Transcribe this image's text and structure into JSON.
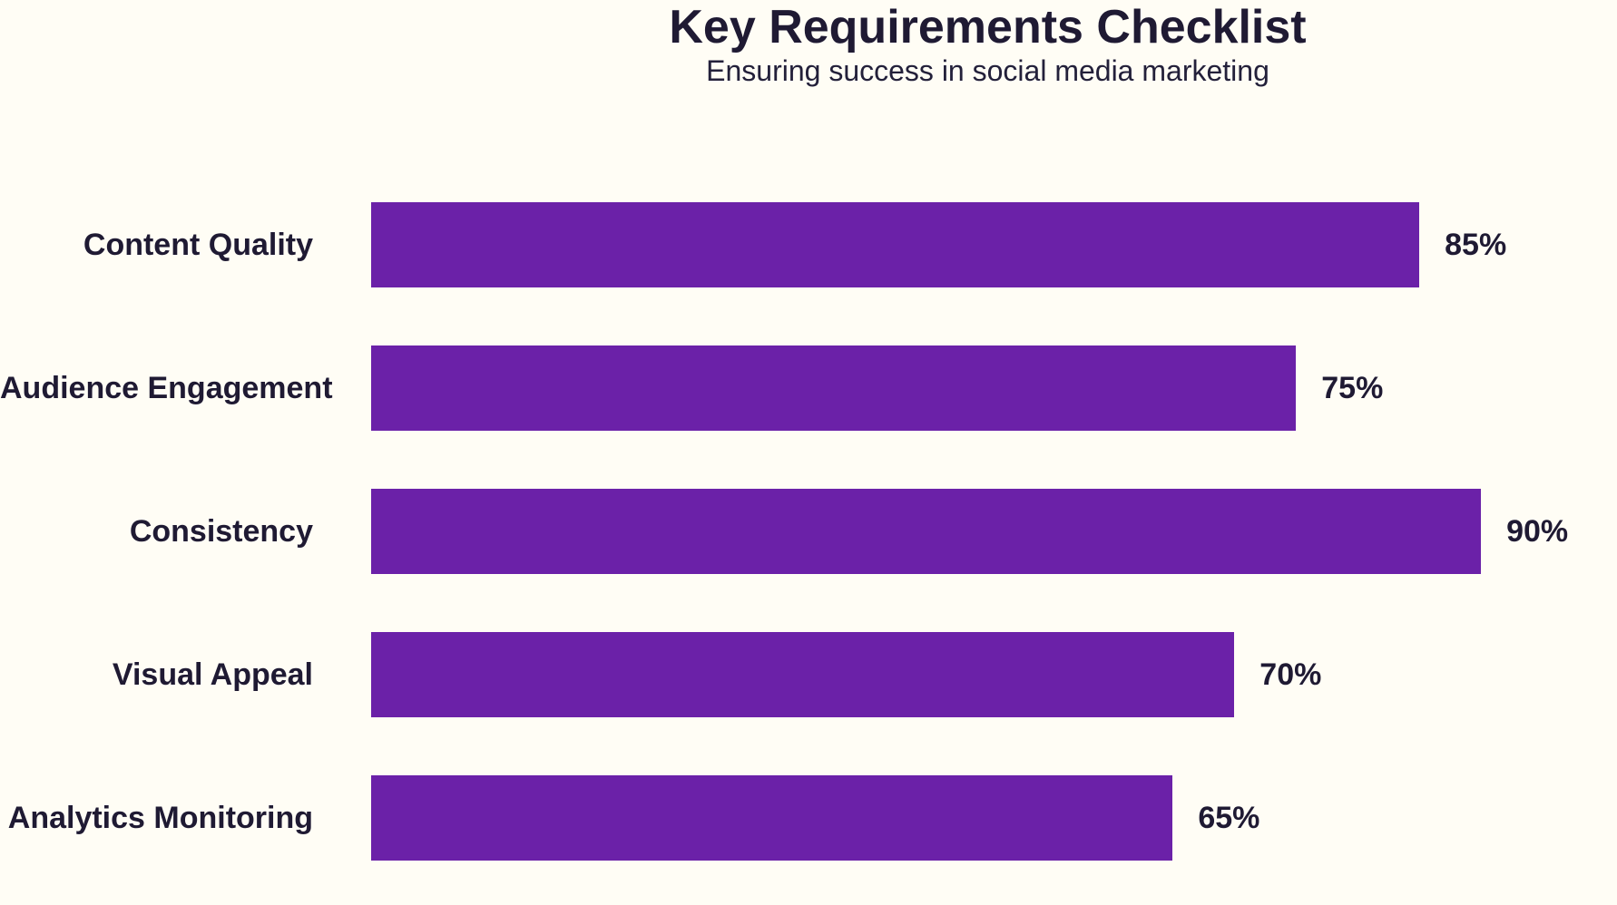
{
  "chart_data": {
    "type": "bar",
    "orientation": "horizontal",
    "title": "Key Requirements Checklist",
    "subtitle": "Ensuring success in social media marketing",
    "categories": [
      "Content Quality",
      "Audience Engagement",
      "Consistency",
      "Visual Appeal",
      "Analytics Monitoring"
    ],
    "values": [
      85,
      75,
      90,
      70,
      65
    ],
    "value_labels": [
      "85%",
      "75%",
      "90%",
      "70%",
      "65%"
    ],
    "xlim": [
      0,
      100
    ],
    "grid": false,
    "legend": false,
    "colors": {
      "bar": "#6B21A8",
      "background": "#FFFDF5",
      "text": "#1F1A33"
    }
  }
}
